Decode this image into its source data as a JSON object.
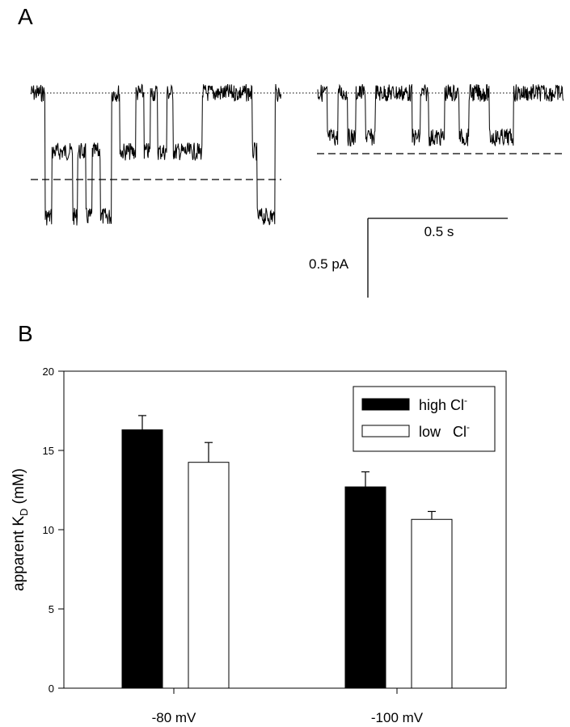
{
  "panel_a": {
    "label": "A",
    "scale_bar": {
      "time_label": "0.5 s",
      "current_label": "0.5 pA"
    }
  },
  "panel_b": {
    "label": "B"
  },
  "chart_data": [
    {
      "type": "line",
      "title": "",
      "description_of_traces": "single-channel current recordings",
      "traces": [
        {
          "name": "trace-left",
          "open_level": 0,
          "sublevel": -0.37,
          "closed_level": -0.78
        },
        {
          "name": "trace-right",
          "open_level": 0,
          "sublevel": -0.28
        }
      ],
      "scale": {
        "time_s": 0.5,
        "current_pA": 0.5
      }
    },
    {
      "type": "bar",
      "categories": [
        "-80 mV",
        "-100 mV"
      ],
      "series": [
        {
          "name": "high Cl⁻",
          "color": "#000000",
          "values": [
            16.3,
            12.7
          ],
          "errors": [
            0.9,
            0.95
          ]
        },
        {
          "name": "low   Cl⁻",
          "color": "#ffffff",
          "values": [
            14.25,
            10.65
          ],
          "errors": [
            1.25,
            0.5
          ]
        }
      ],
      "ylabel": "apparent K",
      "ylabel_subscript": "D",
      "ylabel_unit": " (mM)",
      "ylim": [
        0,
        20
      ],
      "yticks": [
        0,
        5,
        10,
        15,
        20
      ],
      "legend": {
        "position": "top-right",
        "entries": [
          "high Cl",
          "low   Cl"
        ],
        "superscript": "-"
      }
    }
  ]
}
